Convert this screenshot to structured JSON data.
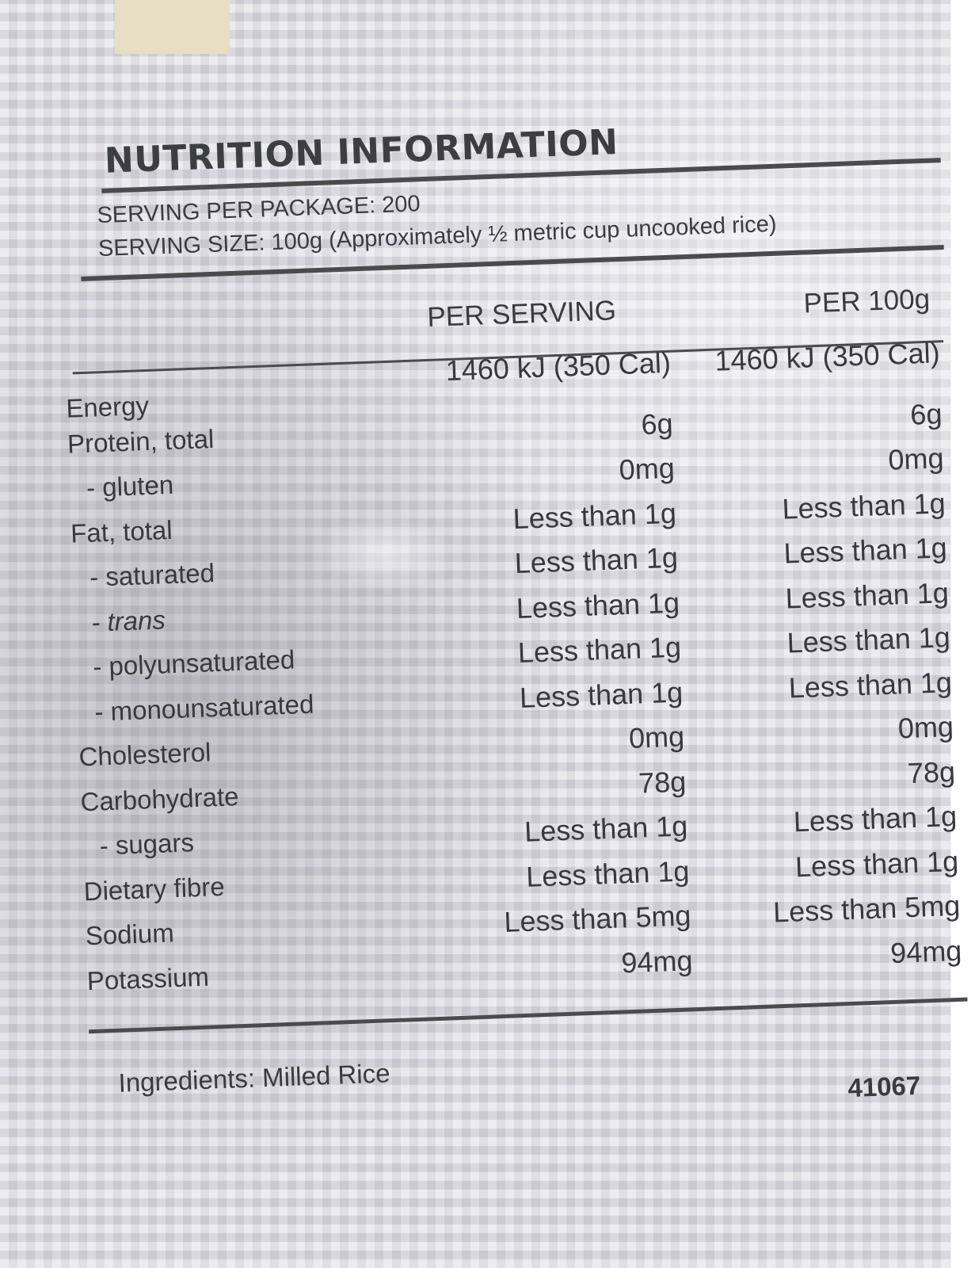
{
  "label": {
    "title": "NUTRITION INFORMATION",
    "servings_per_package": "SERVING PER PACKAGE: 200",
    "serving_size": "SERVING SIZE: 100g (Approximately ½  metric cup uncooked rice)",
    "col_per_serving": "PER SERVING",
    "col_per_100g": "PER 100g",
    "rows": [
      {
        "name": "Energy",
        "per_serving": "1460 kJ (350 Cal)",
        "per_100g": "1460 kJ (350 Cal)"
      },
      {
        "name": "Protein, total",
        "per_serving": "6g",
        "per_100g": "6g"
      },
      {
        "name": "- gluten",
        "per_serving": "0mg",
        "per_100g": "0mg"
      },
      {
        "name": "Fat, total",
        "per_serving": "Less than 1g",
        "per_100g": "Less than 1g"
      },
      {
        "name": "- saturated",
        "per_serving": "Less than 1g",
        "per_100g": "Less than 1g"
      },
      {
        "name": "- trans",
        "per_serving": "Less than 1g",
        "per_100g": "Less than 1g"
      },
      {
        "name": "- polyunsaturated",
        "per_serving": "Less than 1g",
        "per_100g": "Less than 1g"
      },
      {
        "name": "- monounsaturated",
        "per_serving": "Less than 1g",
        "per_100g": "Less than 1g"
      },
      {
        "name": "Cholesterol",
        "per_serving": "0mg",
        "per_100g": "0mg"
      },
      {
        "name": "Carbohydrate",
        "per_serving": "78g",
        "per_100g": "78g"
      },
      {
        "name": "- sugars",
        "per_serving": "Less than 1g",
        "per_100g": "Less than 1g"
      },
      {
        "name": "Dietary fibre",
        "per_serving": "Less than 1g",
        "per_100g": "Less than 1g"
      },
      {
        "name": "Sodium",
        "per_serving": "Less than 5mg",
        "per_100g": "Less than 5mg"
      },
      {
        "name": "Potassium",
        "per_serving": "94mg",
        "per_100g": "94mg"
      }
    ],
    "ingredients": "Ingredients: Milled Rice",
    "code": "41067"
  }
}
